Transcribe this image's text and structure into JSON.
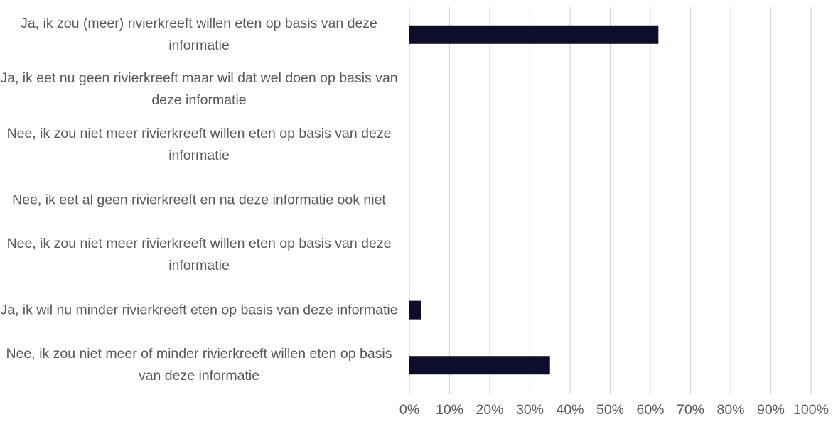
{
  "chart_data": {
    "type": "bar",
    "orientation": "horizontal",
    "categories": [
      "Ja, ik zou (meer) rivierkreeft willen eten op basis van deze informatie",
      "Ja, ik eet nu geen rivierkreeft maar wil dat wel doen op basis van deze informatie",
      "Nee, ik zou niet meer rivierkreeft willen eten op basis van deze informatie",
      "Nee, ik eet al geen rivierkreeft en na deze informatie ook niet",
      "Nee, ik zou niet meer rivierkreeft willen eten op basis van deze informatie",
      "Ja, ik wil nu minder rivierkreeft eten op basis van deze informatie",
      "Nee, ik zou niet meer of minder rivierkreeft willen eten op basis van deze informatie"
    ],
    "values": [
      62,
      0,
      0,
      0,
      0,
      3,
      35
    ],
    "color": "#0e0e2c",
    "xlim": [
      0,
      100
    ],
    "xticks": [
      {
        "value": 0,
        "label": "0%"
      },
      {
        "value": 10,
        "label": "10%"
      },
      {
        "value": 20,
        "label": "20%"
      },
      {
        "value": 30,
        "label": "30%"
      },
      {
        "value": 40,
        "label": "40%"
      },
      {
        "value": 50,
        "label": "50%"
      },
      {
        "value": 60,
        "label": "60%"
      },
      {
        "value": 70,
        "label": "70%"
      },
      {
        "value": 80,
        "label": "80%"
      },
      {
        "value": 90,
        "label": "90%"
      },
      {
        "value": 100,
        "label": "100%"
      }
    ],
    "grid": true
  }
}
